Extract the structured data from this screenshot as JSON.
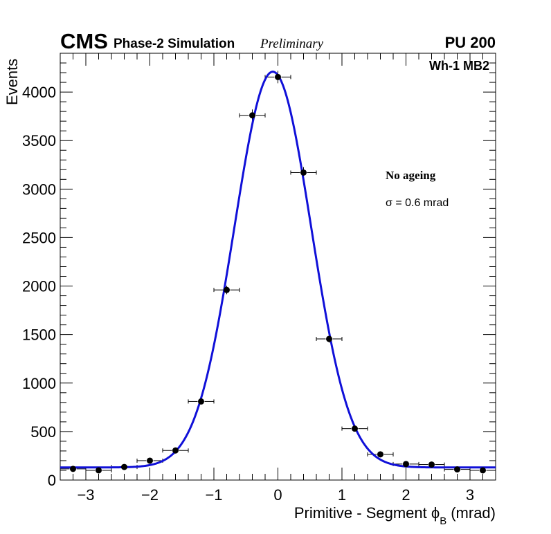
{
  "header": {
    "experiment": "CMS",
    "simulation": "Phase-2 Simulation",
    "status": "Preliminary",
    "pileup": "PU 200"
  },
  "labels": {
    "station": "Wh-1 MB2",
    "condition": "No ageing",
    "resolution": "σ = 0.6 mrad"
  },
  "chart_data": {
    "type": "scatter",
    "title": "",
    "xlabel": "Primitive - Segment ϕ",
    "xlabel_sub": "B",
    "xlabel_unit": "(mrad)",
    "ylabel": "Events",
    "xlim": [
      -3.4,
      3.4
    ],
    "ylim": [
      0,
      4400
    ],
    "x_ticks": [
      -3,
      -2,
      -1,
      0,
      1,
      2,
      3
    ],
    "y_ticks": [
      0,
      500,
      1000,
      1500,
      2000,
      2500,
      3000,
      3500,
      4000
    ],
    "bin_half_width": 0.2,
    "series": [
      {
        "name": "Data",
        "x": [
          -3.2,
          -2.8,
          -2.4,
          -2.0,
          -1.6,
          -1.2,
          -0.8,
          -0.4,
          0.0,
          0.4,
          0.8,
          1.2,
          1.6,
          2.0,
          2.4,
          2.8,
          3.2
        ],
        "y": [
          115,
          100,
          135,
          200,
          305,
          810,
          1960,
          3760,
          4155,
          3170,
          1455,
          530,
          265,
          165,
          160,
          110,
          100
        ],
        "yerr": [
          11,
          10,
          12,
          14,
          17,
          28,
          44,
          61,
          64,
          56,
          38,
          23,
          16,
          13,
          13,
          10,
          10
        ]
      },
      {
        "name": "Gaussian fit",
        "type": "line",
        "color": "#1010d8",
        "amplitude": 4080,
        "mean": -0.08,
        "sigma": 0.6,
        "constant": 130
      }
    ]
  }
}
